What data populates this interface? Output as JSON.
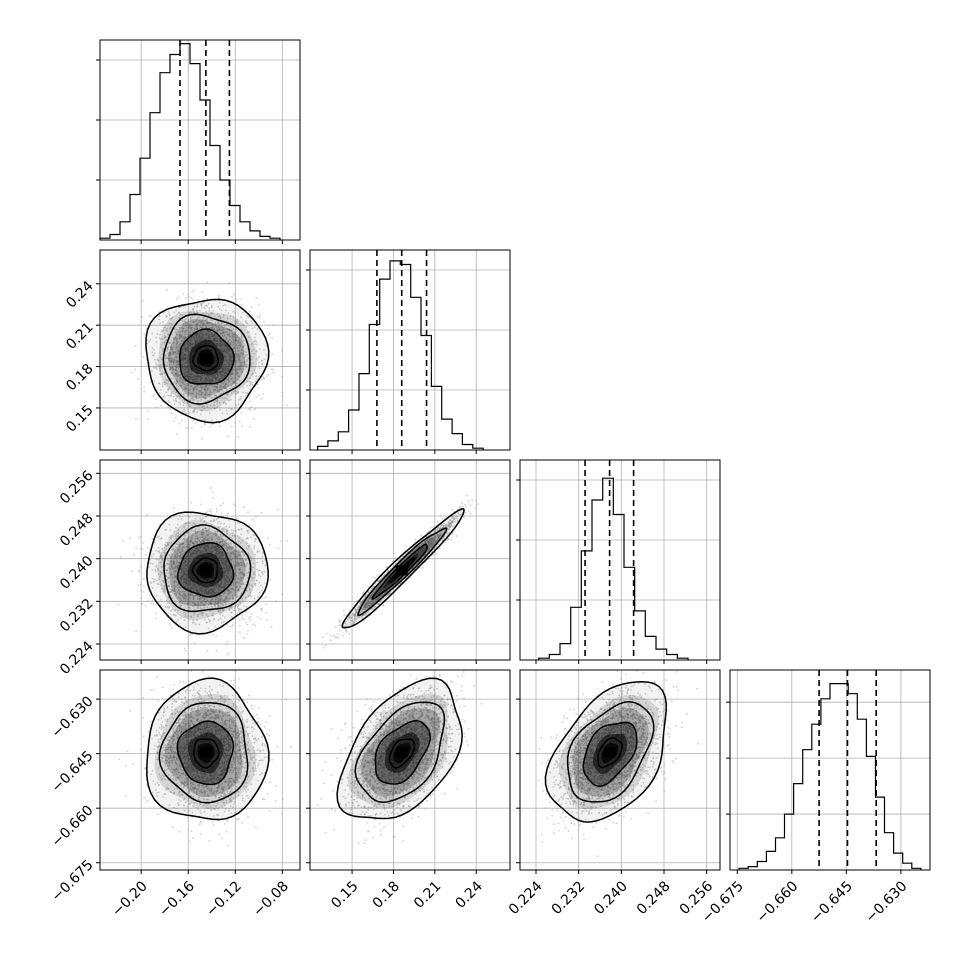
{
  "chart_data": {
    "type": "corner",
    "grid": true,
    "parameters": [
      {
        "ticks": [
          -0.2,
          -0.16,
          -0.12,
          -0.08
        ],
        "tick_labels": [
          "−0.20",
          "−0.16",
          "−0.12",
          "−0.08"
        ],
        "range": [
          -0.235,
          -0.065
        ],
        "quantiles": [
          -0.167,
          -0.145,
          -0.125
        ],
        "hist_edges": [
          -0.235,
          -0.2265,
          -0.218,
          -0.2095,
          -0.201,
          -0.1925,
          -0.184,
          -0.1755,
          -0.167,
          -0.1585,
          -0.15,
          -0.1415,
          -0.133,
          -0.1245,
          -0.116,
          -0.1075,
          -0.099,
          -0.0905,
          -0.082
        ],
        "hist_counts": [
          1,
          3,
          10,
          25,
          45,
          70,
          92,
          102,
          108,
          97,
          77,
          52,
          33,
          19,
          10,
          5,
          2,
          1
        ],
        "hist_max": 110
      },
      {
        "ticks": [
          0.15,
          0.18,
          0.21,
          0.24
        ],
        "tick_labels": [
          "0.15",
          "0.18",
          "0.21",
          "0.24"
        ],
        "range": [
          0.1195,
          0.2645
        ],
        "quantiles": [
          0.168,
          0.186,
          0.204
        ],
        "hist_edges": [
          0.125,
          0.1325,
          0.14,
          0.1475,
          0.155,
          0.1625,
          0.17,
          0.1775,
          0.185,
          0.1925,
          0.2,
          0.2075,
          0.215,
          0.2225,
          0.23,
          0.2375,
          0.245
        ],
        "hist_counts": [
          2,
          5,
          10,
          22,
          42,
          69,
          94,
          104,
          102,
          84,
          63,
          35,
          17,
          9,
          3,
          1
        ],
        "hist_max": 110
      },
      {
        "ticks": [
          0.224,
          0.232,
          0.24,
          0.248,
          0.256
        ],
        "tick_labels": [
          "0.224",
          "0.232",
          "0.240",
          "0.248",
          "0.256"
        ],
        "range": [
          0.221,
          0.2585
        ],
        "quantiles": [
          0.2332,
          0.2378,
          0.2423
        ],
        "hist_edges": [
          0.2245,
          0.2265,
          0.2285,
          0.2305,
          0.2325,
          0.2345,
          0.2365,
          0.2385,
          0.2405,
          0.2425,
          0.2445,
          0.2465,
          0.2485,
          0.2505,
          0.2525
        ],
        "hist_counts": [
          1,
          3,
          9,
          29,
          60,
          88,
          100,
          80,
          51,
          27,
          13,
          6,
          3,
          1
        ],
        "hist_max": 110
      },
      {
        "ticks": [
          -0.675,
          -0.66,
          -0.645,
          -0.63
        ],
        "tick_labels": [
          "−0.675",
          "−0.660",
          "−0.645",
          "−0.630"
        ],
        "range": [
          -0.677,
          -0.622
        ],
        "quantiles": [
          -0.6525,
          -0.6447,
          -0.6368
        ],
        "hist_edges": [
          -0.6745,
          -0.672,
          -0.6695,
          -0.667,
          -0.6645,
          -0.662,
          -0.6595,
          -0.657,
          -0.6545,
          -0.652,
          -0.6495,
          -0.647,
          -0.6445,
          -0.642,
          -0.6395,
          -0.637,
          -0.6345,
          -0.632,
          -0.6295,
          -0.627,
          -0.6245
        ],
        "hist_counts": [
          1,
          2,
          5,
          11,
          19,
          33,
          51,
          71,
          86,
          101,
          110,
          110,
          104,
          89,
          67,
          43,
          22,
          10,
          4,
          1
        ],
        "hist_max": 118
      }
    ],
    "pairs": [
      {
        "row": 1,
        "col": 0,
        "rho": 0.0,
        "points": 2600
      },
      {
        "row": 2,
        "col": 0,
        "rho": 0.0,
        "points": 2600
      },
      {
        "row": 2,
        "col": 1,
        "rho": 0.97,
        "points": 2600
      },
      {
        "row": 3,
        "col": 0,
        "rho": 0.0,
        "points": 2600
      },
      {
        "row": 3,
        "col": 1,
        "rho": 0.45,
        "points": 2600
      },
      {
        "row": 3,
        "col": 2,
        "rho": 0.42,
        "points": 2600
      }
    ],
    "colors": {
      "line": "#000000",
      "grid": "#b0b0b0",
      "scatter": "#9a9a9a",
      "density": "#000000"
    }
  }
}
